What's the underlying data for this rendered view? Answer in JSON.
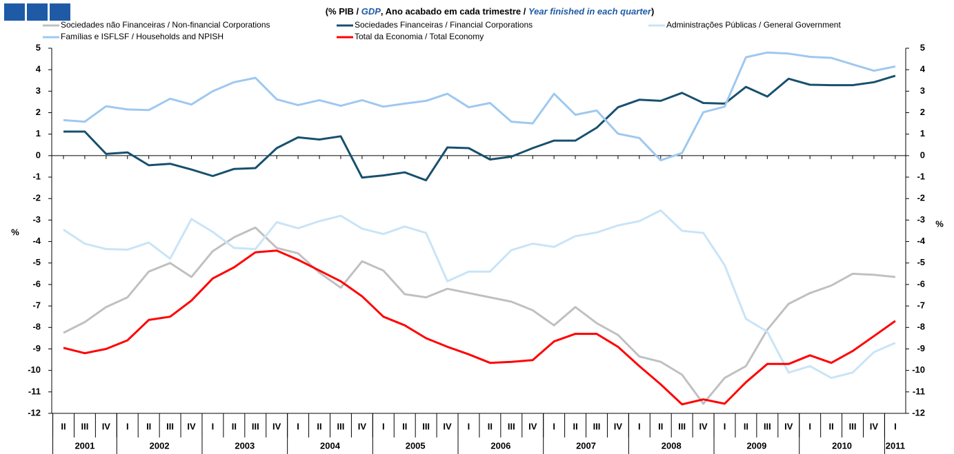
{
  "chart_data": {
    "type": "line",
    "title": [
      "(% PIB / ",
      "GDP",
      ", Ano acabado em cada trimestre / ",
      "Year finished in each quarter",
      ")"
    ],
    "title_emphasis": [
      false,
      true,
      false,
      true,
      false
    ],
    "ylabel": "%",
    "y2label": "%",
    "categories": [
      "II",
      "III",
      "IV",
      "I",
      "II",
      "III",
      "IV",
      "I",
      "II",
      "III",
      "IV",
      "I",
      "II",
      "III",
      "IV",
      "I",
      "II",
      "III",
      "IV",
      "I",
      "II",
      "III",
      "IV",
      "I",
      "II",
      "III",
      "IV",
      "I",
      "II",
      "III",
      "IV",
      "I",
      "II",
      "III",
      "IV",
      "I",
      "II",
      "III",
      "IV",
      "I"
    ],
    "years": [
      "2001",
      "2002",
      "2003",
      "2004",
      "2005",
      "2006",
      "2007",
      "2008",
      "2009",
      "2010",
      "2011"
    ],
    "ylim": [
      -12,
      5
    ],
    "yticks": [
      -12,
      -11,
      -10,
      -9,
      -8,
      -7,
      -6,
      -5,
      -4,
      -3,
      -2,
      -1,
      0,
      1,
      2,
      3,
      4,
      5
    ],
    "y2lim": [
      -12,
      5
    ],
    "y2ticks": [
      -12,
      -11,
      -10,
      -9,
      -8,
      -7,
      -6,
      -5,
      -4,
      -3,
      -2,
      -1,
      0,
      1,
      2,
      3,
      4,
      5
    ],
    "legend": "top",
    "series": [
      {
        "name": "Sociedades não Financeiras / Non-financial Corporations",
        "color": "#c0c0c0",
        "values": [
          -8.25,
          -7.75,
          -7.05,
          -6.6,
          -5.4,
          -5.0,
          -5.65,
          -4.45,
          -3.8,
          -3.35,
          -4.3,
          -4.55,
          -5.45,
          -6.15,
          -4.92,
          -5.35,
          -6.45,
          -6.6,
          -6.2,
          -6.4,
          -6.6,
          -6.8,
          -7.2,
          -7.9,
          -7.05,
          -7.8,
          -8.35,
          -9.35,
          -9.6,
          -10.2,
          -11.55,
          -10.35,
          -9.8,
          -8.1,
          -6.9,
          -6.4,
          -6.05,
          -5.5,
          -5.55,
          -5.65
        ]
      },
      {
        "name": "Sociedades Financeiras / Financial Corporations",
        "color": "#17506e",
        "values": [
          1.12,
          1.12,
          0.08,
          0.15,
          -0.45,
          -0.38,
          -0.65,
          -0.95,
          -0.62,
          -0.58,
          0.35,
          0.85,
          0.75,
          0.9,
          -1.02,
          -0.92,
          -0.78,
          -1.15,
          0.38,
          0.35,
          -0.18,
          -0.05,
          0.35,
          0.7,
          0.7,
          1.3,
          2.25,
          2.6,
          2.55,
          2.92,
          2.45,
          2.42,
          3.2,
          2.75,
          3.58,
          3.3,
          3.28,
          3.28,
          3.42,
          3.72
        ]
      },
      {
        "name": "Administrações Públicas / General Government",
        "color": "#c8e4f7",
        "values": [
          -3.45,
          -4.1,
          -4.35,
          -4.38,
          -4.05,
          -4.8,
          -2.95,
          -3.55,
          -4.3,
          -4.35,
          -3.1,
          -3.38,
          -3.05,
          -2.8,
          -3.4,
          -3.65,
          -3.3,
          -3.6,
          -5.85,
          -5.4,
          -5.4,
          -4.4,
          -4.1,
          -4.25,
          -3.75,
          -3.58,
          -3.25,
          -3.05,
          -2.55,
          -3.5,
          -3.6,
          -5.1,
          -7.6,
          -8.2,
          -10.1,
          -9.8,
          -10.35,
          -10.1,
          -9.15,
          -8.72
        ]
      },
      {
        "name": "Famílias e ISFLSF / Households and NPISH",
        "color": "#9ec8f0",
        "values": [
          1.65,
          1.58,
          2.3,
          2.15,
          2.12,
          2.65,
          2.38,
          3.0,
          3.42,
          3.62,
          2.62,
          2.35,
          2.58,
          2.32,
          2.58,
          2.28,
          2.42,
          2.55,
          2.88,
          2.25,
          2.45,
          1.58,
          1.5,
          2.88,
          1.9,
          2.1,
          1.02,
          0.82,
          -0.22,
          0.12,
          2.02,
          2.28,
          4.58,
          4.8,
          4.75,
          4.6,
          4.55,
          4.25,
          3.95,
          4.15
        ]
      },
      {
        "name": "Total da Economia / Total Economy",
        "color": "#ff0000",
        "values": [
          -8.95,
          -9.2,
          -9.0,
          -8.6,
          -7.65,
          -7.5,
          -6.75,
          -5.72,
          -5.2,
          -4.5,
          -4.42,
          -4.85,
          -5.35,
          -5.85,
          -6.55,
          -7.5,
          -7.9,
          -8.5,
          -8.9,
          -9.25,
          -9.65,
          -9.6,
          -9.52,
          -8.65,
          -8.3,
          -8.3,
          -8.9,
          -9.8,
          -10.65,
          -11.58,
          -11.35,
          -11.55,
          -10.55,
          -9.7,
          -9.7,
          -9.3,
          -9.65,
          -9.1,
          -8.4,
          -7.7
        ]
      }
    ]
  }
}
